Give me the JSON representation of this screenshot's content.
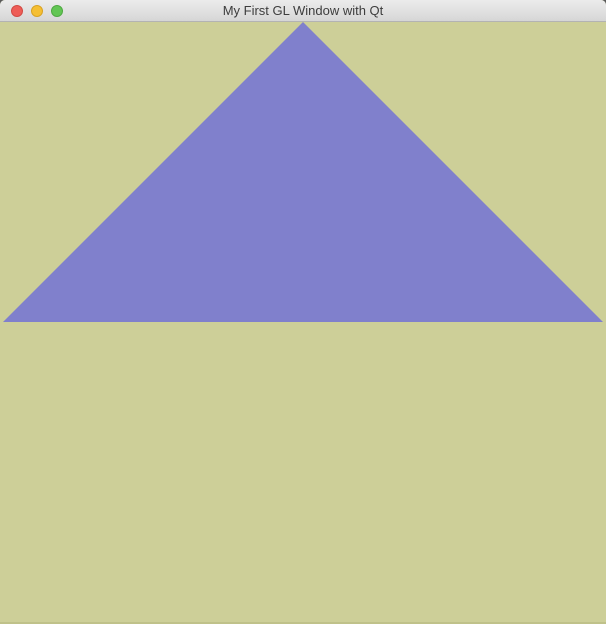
{
  "window": {
    "title": "My First GL Window with Qt"
  },
  "colors": {
    "clear_color": "#cdcf98",
    "triangle_color": "#8080cc",
    "titlebar_text": "#3d3d3d"
  },
  "titlebar_buttons": [
    {
      "name": "close",
      "color": "#ee5d57"
    },
    {
      "name": "minimize",
      "color": "#f5bf33"
    },
    {
      "name": "zoom",
      "color": "#62c654"
    }
  ]
}
